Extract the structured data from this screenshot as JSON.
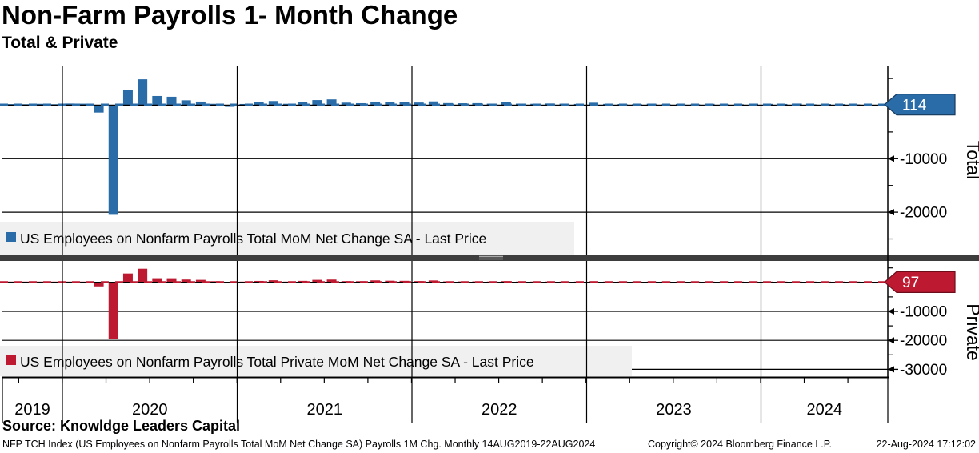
{
  "header": {
    "title": "Non-Farm Payrolls 1- Month Change",
    "subtitle": "Total & Private"
  },
  "colors": {
    "total": "#2a6ca8",
    "total_dark": "#1c4e7d",
    "private": "#bd1a31",
    "private_dark": "#7e0f20",
    "legend_bg": "#f0f0f0",
    "divider": "#3d3d3d",
    "grid": "#000000"
  },
  "x_axis": {
    "years": [
      "2019",
      "2020",
      "2021",
      "2022",
      "2023",
      "2024"
    ]
  },
  "chart_data": [
    {
      "type": "bar",
      "panel": "top",
      "axis_label": "Total",
      "legend": "US Employees on Nonfarm Payrolls Total MoM Net Change SA - Last Price",
      "color_key": "total",
      "last_price": 114,
      "unit": "thousands of jobs",
      "frequency": "monthly",
      "start": "2019-08",
      "end": "2024-07",
      "y_ticks_labeled": [
        -10000,
        -20000
      ],
      "y_ticks_minor": [
        5000,
        -5000,
        -15000,
        -25000
      ],
      "values": [
        207,
        208,
        185,
        261,
        184,
        315,
        289,
        -1373,
        -20493,
        2833,
        4846,
        1726,
        1583,
        919,
        680,
        264,
        -306,
        233,
        536,
        785,
        269,
        614,
        962,
        1091,
        483,
        379,
        677,
        647,
        588,
        504,
        714,
        398,
        368,
        386,
        293,
        537,
        292,
        269,
        324,
        290,
        239,
        472,
        248,
        217,
        217,
        281,
        105,
        236,
        165,
        262,
        150,
        182,
        290,
        256,
        236,
        310,
        165,
        218,
        206,
        114
      ]
    },
    {
      "type": "bar",
      "panel": "bottom",
      "axis_label": "Private",
      "legend": "US Employees on Nonfarm Payrolls Total Private MoM Net Change SA - Last Price",
      "color_key": "private",
      "last_price": 97,
      "unit": "thousands of jobs",
      "frequency": "monthly",
      "start": "2019-08",
      "end": "2024-07",
      "y_ticks_labeled": [
        -10000,
        -20000,
        -30000
      ],
      "y_ticks_minor": [
        5000,
        -5000,
        -15000,
        -25000
      ],
      "values": [
        181,
        162,
        163,
        222,
        142,
        269,
        242,
        -1377,
        -19553,
        3073,
        4721,
        1442,
        1432,
        991,
        877,
        417,
        -243,
        150,
        507,
        734,
        255,
        531,
        883,
        980,
        439,
        424,
        700,
        583,
        543,
        448,
        676,
        351,
        331,
        342,
        279,
        440,
        271,
        256,
        284,
        240,
        204,
        393,
        191,
        142,
        191,
        255,
        76,
        198,
        116,
        213,
        108,
        139,
        250,
        196,
        177,
        243,
        158,
        193,
        136,
        97
      ]
    }
  ],
  "source_line": "Source: Knowldge Leaders Capital",
  "footer": {
    "left": "NFP TCH Index (US Employees on Nonfarm Payrolls Total MoM Net Change SA) Payrolls 1M Chg.  Monthly 14AUG2019-22AUG2024",
    "center": "Copyright© 2024 Bloomberg Finance L.P.",
    "right": "22-Aug-2024 17:12:02"
  }
}
